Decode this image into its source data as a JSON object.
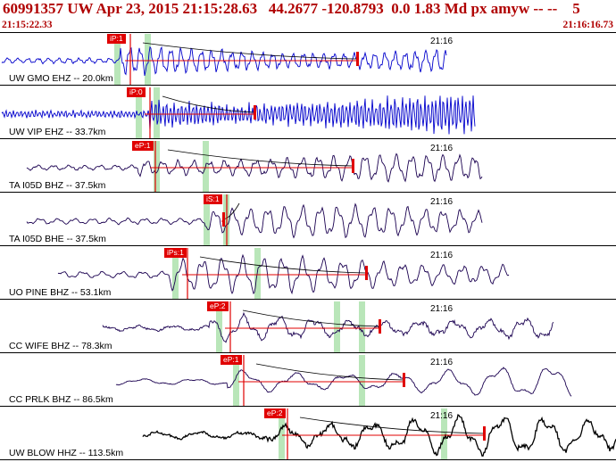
{
  "header": {
    "title": "60991357 UW Apr 23, 2015 21:15:28.63   44.2677 -120.8793  0.0 1.83 Md px amyw -- --    5",
    "start_time": "21:15:22.33",
    "end_time": "21:16:16.73"
  },
  "traces": [
    {
      "label": "UW GMO EHZ -- 20.0km",
      "time_mark": "21:16",
      "pick": "iP:1",
      "color": "#0000cc",
      "amp": 13,
      "freq": 0.55,
      "onset": 135,
      "end": 500,
      "noise": 1.3
    },
    {
      "label": "UW VIP EHZ -- 33.7km",
      "time_mark": "",
      "pick": "iP:0",
      "color": "#0000cc",
      "amp": 17,
      "freq": 1.5,
      "onset": 168,
      "end": 532,
      "noise": 2.5
    },
    {
      "label": "TA I05D BHZ -- 37.5km",
      "time_mark": "21:16",
      "pick": "eP:1",
      "color": "#1a0050",
      "amp": 12,
      "freq": 0.36,
      "onset": 155,
      "end": 540,
      "noise": 1.2
    },
    {
      "label": "TA I05D BHE -- 37.5km",
      "time_mark": "21:16",
      "pick": "iS:1",
      "color": "#1a0050",
      "amp": 14,
      "freq": 0.32,
      "onset": 230,
      "end": 540,
      "noise": 1
    },
    {
      "label": "UO PINE BHZ -- 53.1km",
      "time_mark": "21:16",
      "pick": "iPs:1",
      "color": "#1a0050",
      "amp": 16,
      "freq": 0.28,
      "onset": 190,
      "end": 570,
      "noise": 1
    },
    {
      "label": "CC WIFE BHZ -- 78.3km",
      "time_mark": "21:16",
      "pick": "eP:2",
      "color": "#1a0050",
      "amp": 12,
      "freq": 0.16,
      "onset": 235,
      "end": 620,
      "noise": 2
    },
    {
      "label": "CC PRLK BHZ -- 86.5km",
      "time_mark": "21:16",
      "pick": "eP:1",
      "color": "#1a0050",
      "amp": 14,
      "freq": 0.11,
      "onset": 255,
      "end": 640,
      "noise": 0.8
    },
    {
      "label": "UW BLOW HHZ -- 113.5km",
      "time_mark": "21:16",
      "pick": "eP:2",
      "color": "#000000",
      "amp": 17,
      "freq": 0.13,
      "onset": 300,
      "end": 690,
      "noise": 2.5
    }
  ]
}
